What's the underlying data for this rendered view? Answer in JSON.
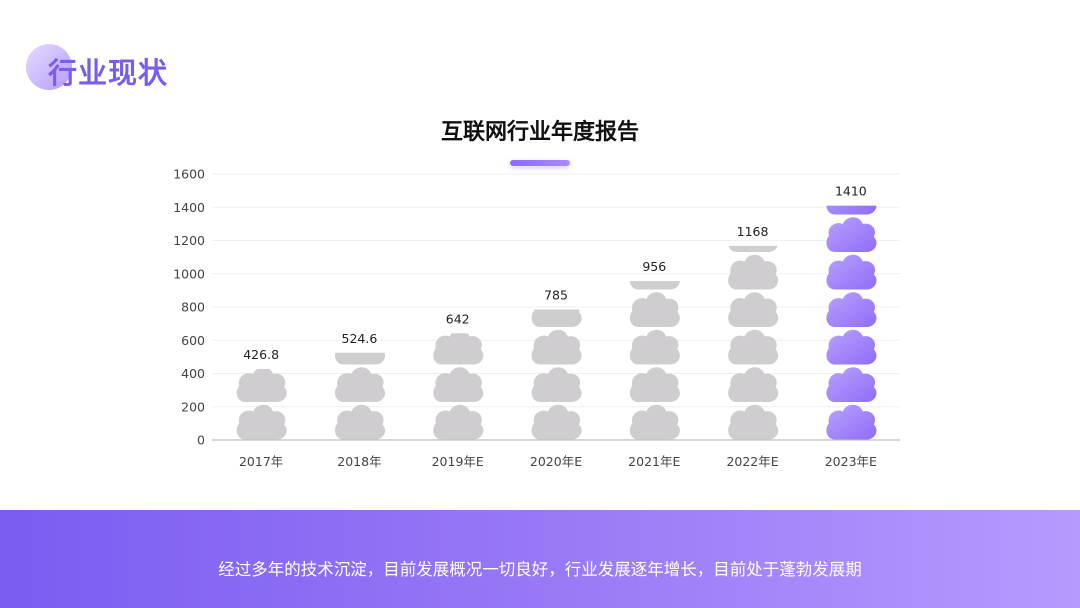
{
  "header": {
    "title": "行业现状"
  },
  "chart_data": {
    "type": "bar",
    "title": "互联网行业年度报告",
    "categories": [
      "2017年",
      "2018年",
      "2019年E",
      "2020年E",
      "2021年E",
      "2022年E",
      "2023年E"
    ],
    "values": [
      426.8,
      524.6,
      642,
      785,
      956,
      1168,
      1410
    ],
    "value_labels": [
      "426.8",
      "524.6",
      "642",
      "785",
      "956",
      "1168",
      "1410"
    ],
    "ylim": [
      0,
      1600
    ],
    "yticks": [
      0,
      200,
      400,
      600,
      800,
      1000,
      1200,
      1400,
      1600
    ],
    "xlabel": "",
    "ylabel": "",
    "grid": true,
    "legend": "none",
    "colors": {
      "default": "#cfcdd0",
      "highlight": "#8f6cf7",
      "highlight_light": "#b9a2ff"
    },
    "highlight_index": 6
  },
  "footer": {
    "text": "经过多年的技术沉淀，目前发展概况一切良好，行业发展逐年增长，目前处于蓬勃发展期"
  }
}
